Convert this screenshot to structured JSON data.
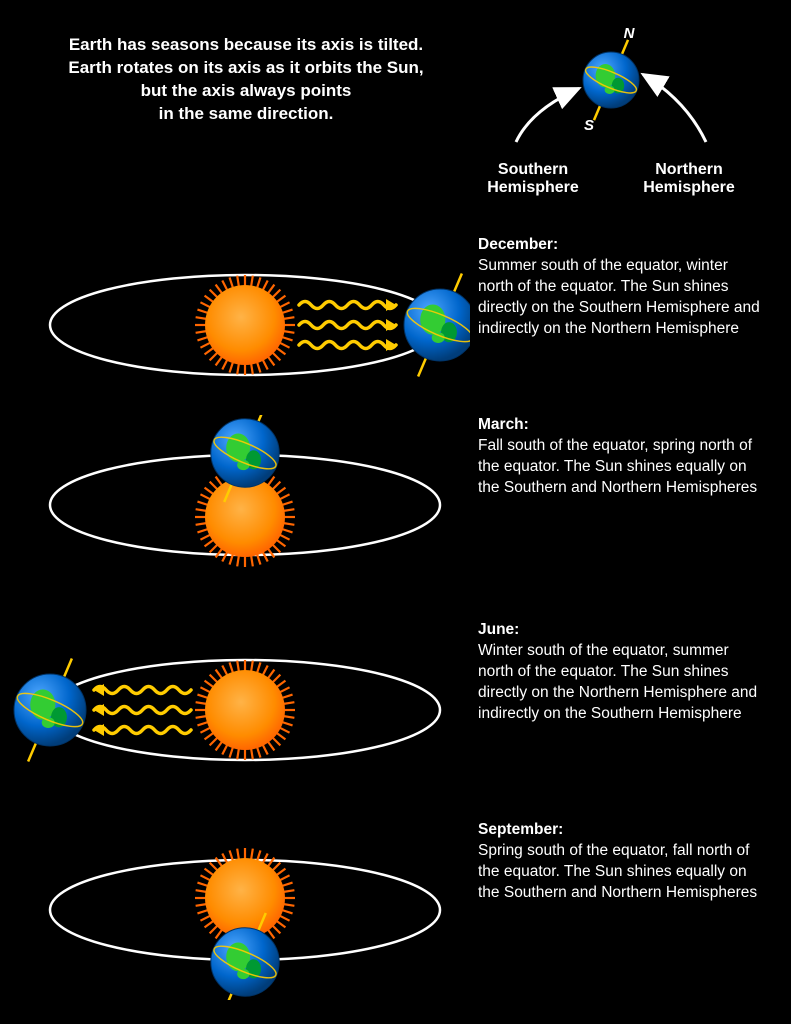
{
  "colors": {
    "background": "#000000",
    "text": "#ffffff",
    "orbit": "#ffffff",
    "sun_core": "#ff8c00",
    "sun_edge": "#ff6600",
    "sun_ray": "#ff6600",
    "earth_ocean": "#0066cc",
    "earth_highlight": "#4da6ff",
    "earth_land": "#33cc33",
    "earth_land_dark": "#009933",
    "axis": "#ffcc00",
    "ray_wave": "#ffcc00",
    "arrow": "#ffffff"
  },
  "header": {
    "line1": "Earth has seasons because its axis is tilted.",
    "line2": "Earth rotates on its axis as it orbits the Sun,",
    "line3": "but the axis always points",
    "line4": "in the same direction."
  },
  "legend": {
    "north_label": "N",
    "south_label": "S",
    "southern": "Southern Hemisphere",
    "northern": "Northern Hemisphere"
  },
  "diagram": {
    "orbit_rx": 195,
    "orbit_ry": 50,
    "orbit_stroke_width": 2.5,
    "sun_radius": 40,
    "sun_ray_count": 40,
    "sun_ray_length": 10,
    "earth_radius": 36,
    "axis_tilt_deg": 23,
    "axis_length": 56,
    "wave_count": 3,
    "wave_stroke_width": 3.5,
    "small_earth_radius": 28
  },
  "panels": [
    {
      "month": "December:",
      "desc": "Summer south of the equator, winter north of the equator. The Sun shines directly on the Southern Hemisphere and indirectly on the Northern Hemisphere",
      "earth_pos": "right",
      "rays_dir": "right",
      "sun_center": true
    },
    {
      "month": "March:",
      "desc": "Fall south of the equator, spring north of the equator. The Sun shines equally on the Southern and Northern Hemispheres",
      "earth_pos": "top",
      "rays_dir": "none",
      "sun_center": true
    },
    {
      "month": "June:",
      "desc": "Winter south of the equator, summer north of the equator. The Sun shines directly on the Northern Hemisphere and indirectly on the Southern Hemisphere",
      "earth_pos": "left",
      "rays_dir": "left",
      "sun_center": true
    },
    {
      "month": "September:",
      "desc": "Spring south of the equator, fall north of the equator. The Sun shines equally on the Southern and Northern Hemispheres",
      "earth_pos": "bottom",
      "rays_dir": "none",
      "sun_center": true
    }
  ]
}
